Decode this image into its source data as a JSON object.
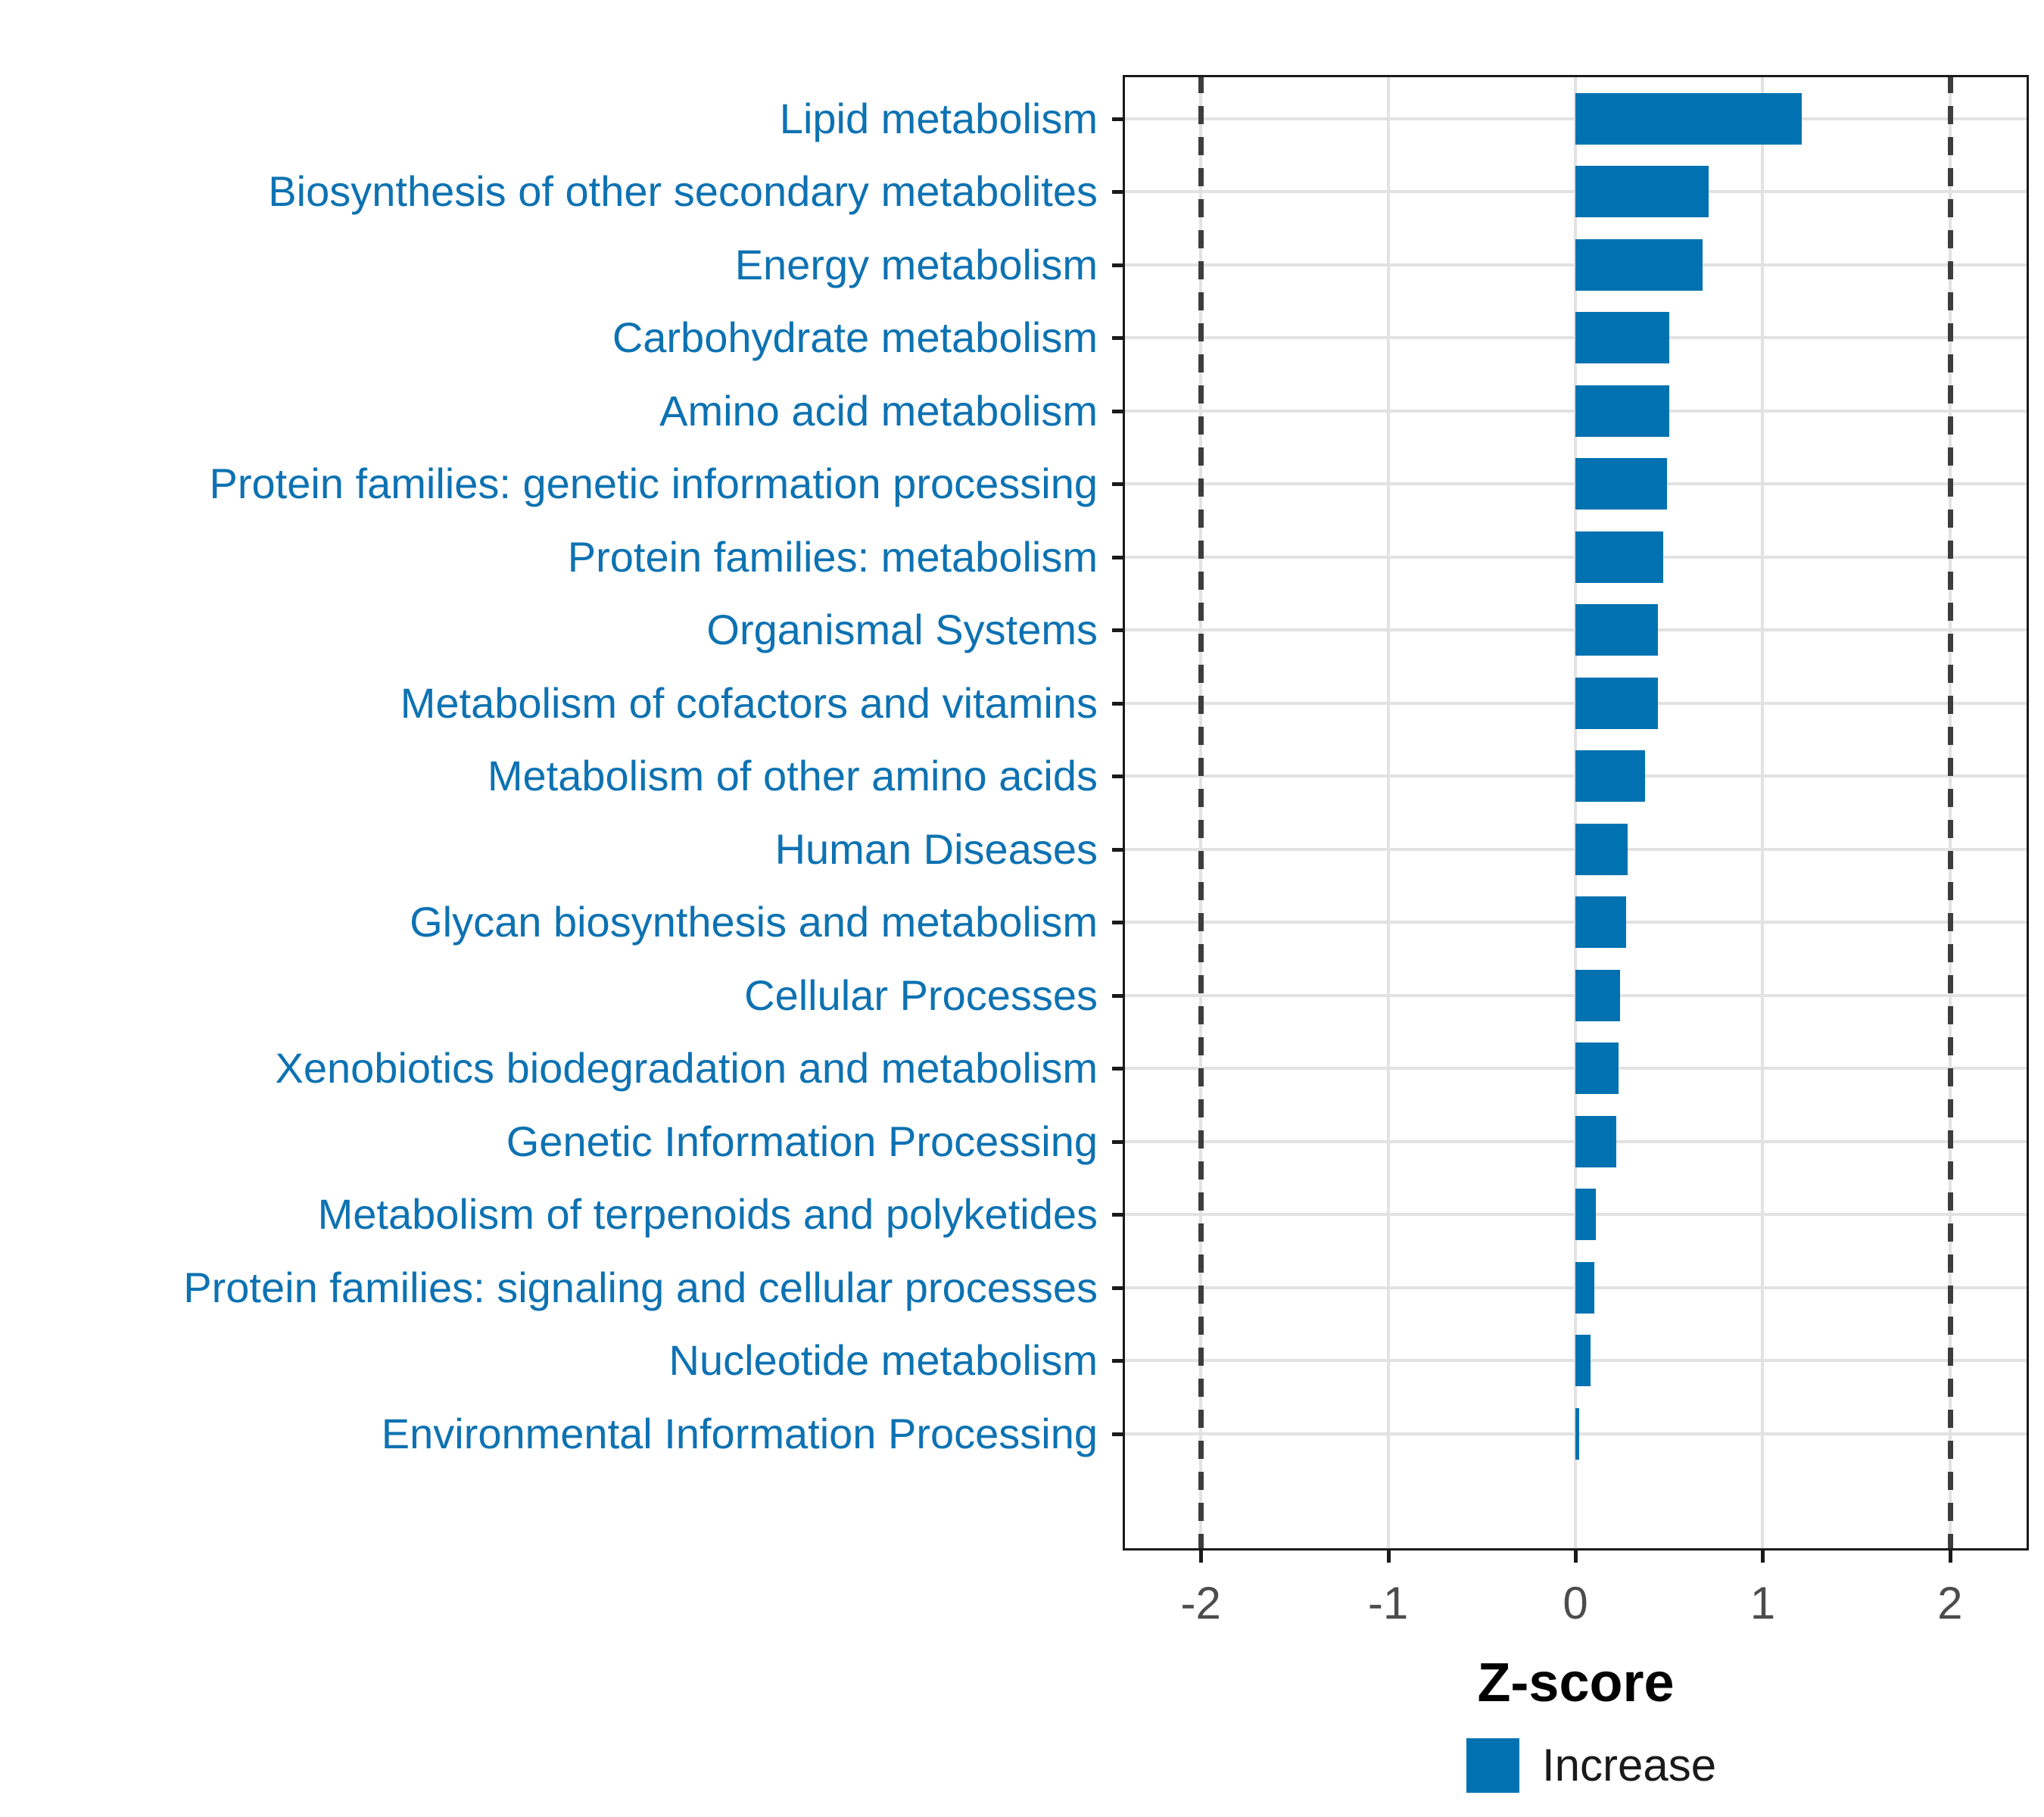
{
  "figure": {
    "background": "#ffffff",
    "legend": {
      "label": "Increase",
      "color": "#0072B2"
    }
  },
  "chart_data": {
    "type": "bar",
    "orientation": "horizontal",
    "title": "",
    "xlabel": "Z-score",
    "ylabel": "",
    "categories": [
      "Lipid metabolism",
      "Biosynthesis of other secondary metabolites",
      "Energy metabolism",
      "Carbohydrate metabolism",
      "Amino acid metabolism",
      "Protein families: genetic information processing",
      "Protein families: metabolism",
      "Organismal Systems",
      "Metabolism of cofactors and vitamins",
      "Metabolism of other amino acids",
      "Human Diseases",
      "Glycan biosynthesis and metabolism",
      "Cellular Processes",
      "Xenobiotics biodegradation and metabolism",
      "Genetic Information Processing",
      "Metabolism of terpenoids and polyketides",
      "Protein families: signaling and cellular processes",
      "Nucleotide metabolism",
      "Environmental Information Processing"
    ],
    "values": [
      1.21,
      0.71,
      0.68,
      0.5,
      0.5,
      0.49,
      0.47,
      0.44,
      0.44,
      0.37,
      0.28,
      0.27,
      0.24,
      0.23,
      0.22,
      0.11,
      0.1,
      0.08,
      0.02
    ],
    "series_name": "Increase",
    "bar_color": "#0072B2",
    "category_label_color": "#0D72B2",
    "xlim": [
      -2.42,
      2.42
    ],
    "xticks": [
      "-2",
      "-1",
      "0",
      "1",
      "2"
    ],
    "xtick_values": [
      -2,
      -1,
      0,
      1,
      2
    ],
    "reference_lines": [
      -2,
      2
    ],
    "grid": true,
    "legend_position": "bottom"
  }
}
